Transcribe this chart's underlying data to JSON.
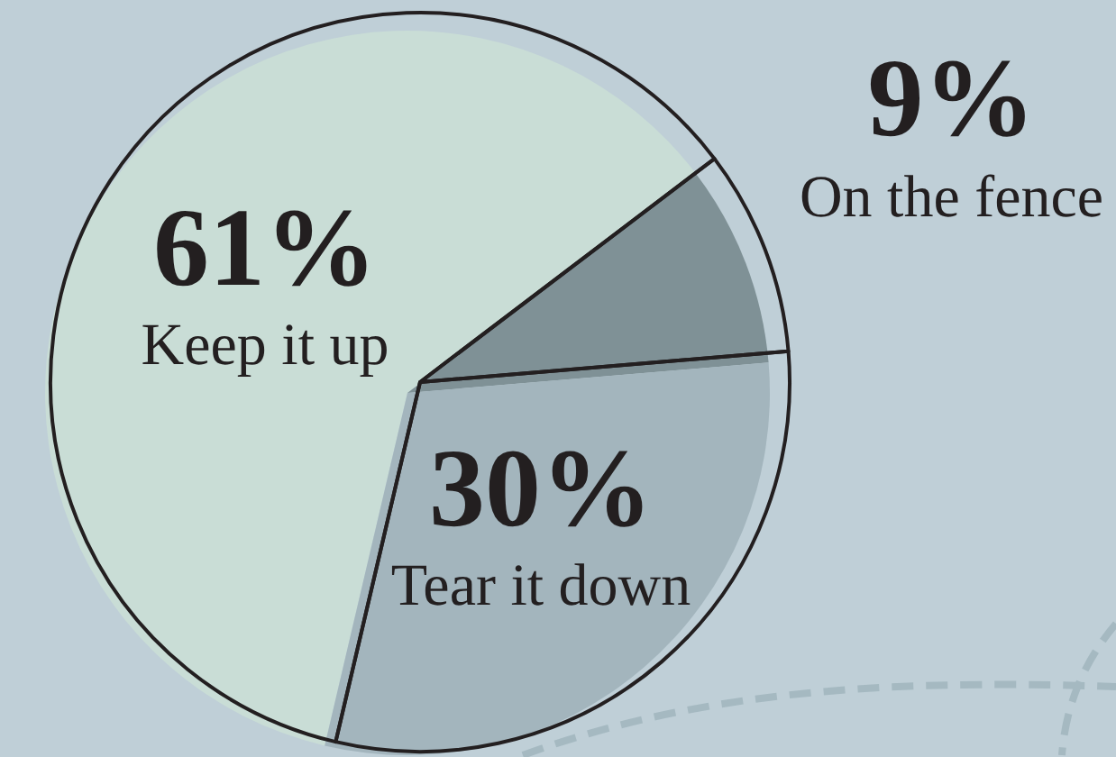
{
  "chart_data": {
    "type": "pie",
    "categories": [
      "Keep it up",
      "On the fence",
      "Tear it down"
    ],
    "values": [
      61,
      9,
      30
    ],
    "colors": [
      "#c9ddd6",
      "#7f9196",
      "#a3b5bd"
    ],
    "value_labels": [
      "61%",
      "9%",
      "30%"
    ]
  }
}
